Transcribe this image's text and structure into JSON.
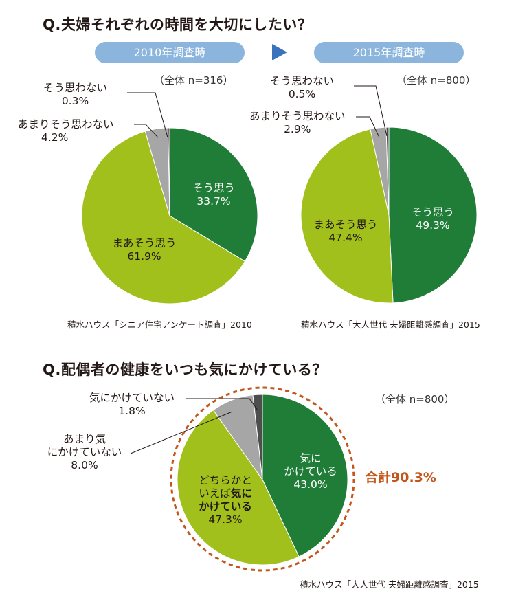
{
  "q1": {
    "title": "Q.夫婦それぞれの時間を大切にしたい？",
    "pill_2010": "2010年調査時",
    "pill_2015": "2015年調査時"
  },
  "q2": {
    "title": "Q.配偶者の健康をいつも気にかけている？",
    "sum_label": "合計90.3%"
  },
  "chart_data": [
    {
      "type": "pie",
      "survey": "2010年調査時",
      "n_label": "（全体 n=316）",
      "source": "積水ハウス「シニア住宅アンケート調査」2010",
      "slices": [
        {
          "label": "そう思う",
          "value": 33.7,
          "value_label": "33.7%",
          "color": "#1f7d38"
        },
        {
          "label": "まあそう思う",
          "value": 61.9,
          "value_label": "61.9%",
          "color": "#a2c01c"
        },
        {
          "label": "あまりそう思わない",
          "value": 4.2,
          "value_label": "4.2%",
          "color": "#a6a6a6"
        },
        {
          "label": "そう思わない",
          "value": 0.3,
          "value_label": "0.3%",
          "color": "#4d4d4d"
        }
      ]
    },
    {
      "type": "pie",
      "survey": "2015年調査時",
      "n_label": "（全体 n=800）",
      "source": "積水ハウス「大人世代 夫婦距離感調査」2015",
      "slices": [
        {
          "label": "そう思う",
          "value": 49.3,
          "value_label": "49.3%",
          "color": "#1f7d38"
        },
        {
          "label": "まあそう思う",
          "value": 47.4,
          "value_label": "47.4%",
          "color": "#a2c01c"
        },
        {
          "label": "あまりそう思わない",
          "value": 2.9,
          "value_label": "2.9%",
          "color": "#a6a6a6"
        },
        {
          "label": "そう思わない",
          "value": 0.5,
          "value_label": "0.5%",
          "color": "#4d4d4d"
        }
      ]
    },
    {
      "type": "pie",
      "n_label": "（全体 n=800）",
      "source": "積水ハウス「大人世代 夫婦距離感調査」2015",
      "slices": [
        {
          "label_line1": "気に",
          "label_line2": "かけている",
          "value": 43.0,
          "value_label": "43.0%",
          "color": "#1f7d38"
        },
        {
          "label_line1": "どちらかと",
          "label_line2a": "いえば",
          "label_line2b": "気に",
          "label_line3": "かけている",
          "value": 47.3,
          "value_label": "47.3%",
          "color": "#a2c01c"
        },
        {
          "label_line1": "あまり気",
          "label_line2": "にかけていない",
          "value": 8.0,
          "value_label": "8.0%",
          "color": "#a6a6a6"
        },
        {
          "label": "気にかけていない",
          "value": 1.8,
          "value_label": "1.8%",
          "color": "#4d4d4d"
        }
      ]
    }
  ]
}
